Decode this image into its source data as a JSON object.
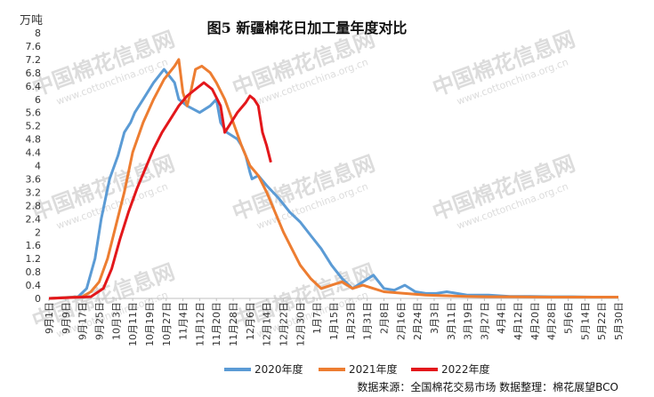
{
  "chart_data": {
    "type": "line",
    "title": "图5  新疆棉花日加工量年度对比",
    "ylabel": "万吨",
    "ylim": [
      0,
      8
    ],
    "yticks": [
      "0",
      "0.4",
      "0.8",
      "1.2",
      "1.6",
      "2",
      "2.4",
      "2.8",
      "3.2",
      "3.6",
      "4",
      "4.4",
      "4.8",
      "5.2",
      "5.6",
      "6",
      "6.4",
      "6.8",
      "7.2",
      "7.6",
      "8"
    ],
    "categories": [
      "9月1日",
      "9月9日",
      "9月17日",
      "9月25日",
      "10月3日",
      "10月11日",
      "10月19日",
      "10月27日",
      "11月4日",
      "11月12日",
      "11月20日",
      "11月28日",
      "12月6日",
      "12月14日",
      "12月22日",
      "12月30日",
      "1月7日",
      "1月15日",
      "1月23日",
      "1月31日",
      "2月8日",
      "2月16日",
      "2月24日",
      "3月3日",
      "3月11日",
      "3月19日",
      "3月27日",
      "4月4日",
      "4月12日",
      "4月20日",
      "4月28日",
      "5月6日",
      "5月14日",
      "5月22日",
      "5月30日"
    ],
    "grid": false,
    "legend_position": "bottom",
    "series": [
      {
        "name": "2020年度",
        "color": "#5b9bd5",
        "x": [
          0,
          14,
          18,
          22,
          25,
          29,
          33,
          36,
          39,
          41,
          45,
          50,
          55,
          60,
          62,
          66,
          72,
          77,
          80,
          82,
          85,
          90,
          92,
          94,
          96,
          97,
          100,
          104,
          110,
          115,
          120,
          125,
          130,
          135,
          140,
          145,
          150,
          155,
          160,
          165,
          170,
          175,
          180,
          185,
          190,
          200,
          210,
          220,
          230,
          240,
          250,
          260,
          272
        ],
        "y": [
          0,
          0.05,
          0.3,
          1.2,
          2.4,
          3.6,
          4.3,
          5.0,
          5.3,
          5.6,
          6.0,
          6.5,
          6.9,
          6.5,
          6.0,
          5.8,
          5.6,
          5.8,
          6.0,
          5.3,
          5.0,
          4.8,
          4.6,
          4.3,
          3.8,
          3.6,
          3.7,
          3.4,
          3.0,
          2.6,
          2.3,
          1.9,
          1.5,
          1.0,
          0.6,
          0.3,
          0.5,
          0.7,
          0.3,
          0.25,
          0.4,
          0.2,
          0.15,
          0.15,
          0.2,
          0.1,
          0.1,
          0.06,
          0.06,
          0.05,
          0.05,
          0.04,
          0.04
        ]
      },
      {
        "name": "2021年度",
        "color": "#ed7d31",
        "x": [
          0,
          16,
          20,
          24,
          28,
          32,
          36,
          40,
          45,
          50,
          55,
          60,
          62,
          64,
          66,
          68,
          70,
          73,
          77,
          80,
          84,
          88,
          92,
          96,
          100,
          104,
          108,
          112,
          116,
          120,
          125,
          130,
          135,
          140,
          145,
          150,
          155,
          160,
          170,
          180,
          190,
          200,
          210,
          220,
          240,
          260,
          272
        ],
        "y": [
          0,
          0.05,
          0.2,
          0.5,
          1.2,
          2.2,
          3.2,
          4.4,
          5.3,
          6.0,
          6.6,
          7.0,
          7.2,
          6.2,
          5.8,
          6.3,
          6.9,
          7.0,
          6.8,
          6.5,
          6.0,
          5.3,
          4.6,
          4.0,
          3.7,
          3.2,
          2.6,
          2.0,
          1.5,
          1.0,
          0.6,
          0.3,
          0.4,
          0.5,
          0.3,
          0.4,
          0.3,
          0.2,
          0.15,
          0.1,
          0.08,
          0.06,
          0.05,
          0.05,
          0.04,
          0.04,
          0.04
        ]
      },
      {
        "name": "2022年度",
        "color": "#e3171b",
        "x": [
          0,
          20,
          26,
          30,
          34,
          38,
          42,
          46,
          50,
          54,
          58,
          62,
          66,
          70,
          74,
          78,
          82,
          84,
          86,
          90,
          94,
          96,
          98,
          100,
          102,
          104,
          106
        ],
        "y": [
          0,
          0.05,
          0.3,
          0.9,
          1.8,
          2.6,
          3.3,
          3.9,
          4.5,
          5.0,
          5.4,
          5.8,
          6.1,
          6.3,
          6.5,
          6.3,
          5.8,
          5.0,
          5.2,
          5.6,
          5.9,
          6.1,
          6.0,
          5.8,
          5.0,
          4.6,
          4.1
        ]
      }
    ],
    "source_note": "数据来源：全国棉花交易市场   数据整理：棉花展望BCO",
    "watermark": {
      "cn": "中国棉花信息网",
      "en": "www.cottonchina.org.cn"
    }
  }
}
